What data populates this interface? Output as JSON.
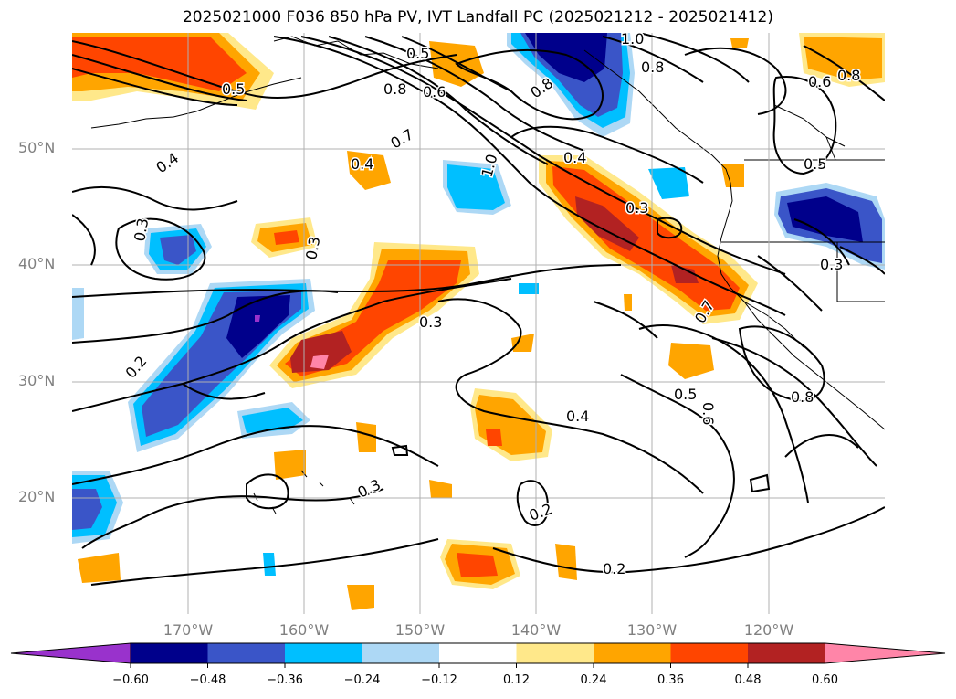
{
  "title": "2025021000 F036 850 hPa PV, IVT Landfall PC (2025021212 - 2025021412)",
  "lat_labels": [
    "50°N",
    "40°N",
    "30°N",
    "20°N"
  ],
  "lon_labels": [
    "170°W",
    "160°W",
    "150°W",
    "140°W",
    "130°W",
    "120°W"
  ],
  "contour_labels": [
    "0.5",
    "0.5",
    "0.8",
    "0.6",
    "0.7",
    "1.0",
    "1.0",
    "0.8",
    "0.8",
    "0.6",
    "0.8",
    "0.4",
    "0.4",
    "0.3",
    "0.3",
    "0.3",
    "0.4",
    "0.5",
    "0.3",
    "0.2",
    "0.7",
    "0.3",
    "0.4",
    "0.5",
    "0.6",
    "0.8",
    "0.3",
    "0.2",
    "0.2"
  ],
  "colorbar": {
    "ticks": [
      "−0.60",
      "−0.48",
      "−0.36",
      "−0.24",
      "−0.12",
      "0.12",
      "0.24",
      "0.36",
      "0.48",
      "0.60"
    ],
    "colors": [
      "#9932cc",
      "#00008b",
      "#3a55c8",
      "#00bfff",
      "#add8f5",
      "#ffffff",
      "#ffe88a",
      "#ffa500",
      "#ff4500",
      "#b22222",
      "#ff85a8"
    ]
  }
}
